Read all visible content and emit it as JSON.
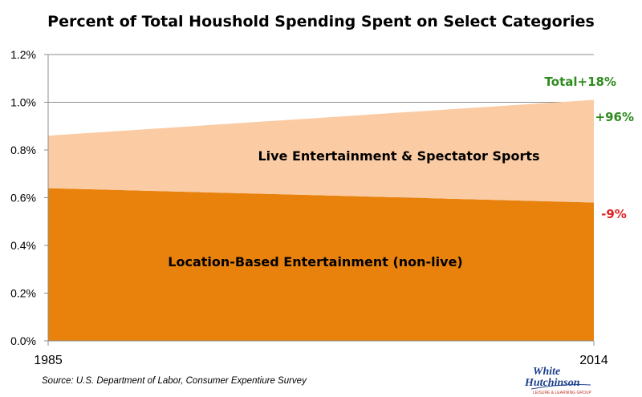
{
  "chart_data": {
    "type": "area",
    "title": "Percent of Total Houshold Spending Spent on Select Categories",
    "x": [
      "1985",
      "2014"
    ],
    "ylim": [
      0,
      1.2
    ],
    "yticks": [
      "0.0%",
      "0.2%",
      "0.4%",
      "0.6%",
      "0.8%",
      "1.0%",
      "1.2%"
    ],
    "yticks_values": [
      0,
      0.2,
      0.4,
      0.6,
      0.8,
      1.0,
      1.2
    ],
    "stacked": true,
    "grid": true,
    "series": [
      {
        "name": "Location-Based Entertainment (non-live)",
        "values": [
          0.64,
          0.58
        ],
        "color": "#e8820c"
      },
      {
        "name": "Live Entertainment & Spectator Sports",
        "values": [
          0.22,
          0.43
        ],
        "color": "#fbcba4"
      }
    ],
    "annotations": {
      "total": {
        "text": "Total+18%",
        "color": "#2e8b1f"
      },
      "live": {
        "text": "+96%",
        "color": "#2e8b1f"
      },
      "location": {
        "text": "-9%",
        "color": "#e02020"
      }
    }
  },
  "source_note": "Source: U.S. Department of Labor, Consumer Expentiure Survey",
  "logo": {
    "line1": "White",
    "line2": "Hutchinson",
    "tagline": "LEISURE & LEARNING GROUP"
  }
}
